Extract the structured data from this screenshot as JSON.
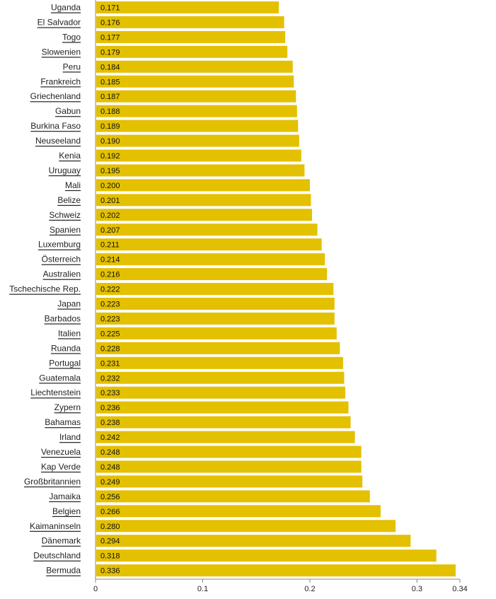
{
  "chart_data": {
    "type": "bar",
    "orientation": "horizontal",
    "categories": [
      "Uganda",
      "El Salvador",
      "Togo",
      "Slowenien",
      "Peru",
      "Frankreich",
      "Griechenland",
      "Gabun",
      "Burkina Faso",
      "Neuseeland",
      "Kenia",
      "Uruguay",
      "Mali",
      "Belize",
      "Schweiz",
      "Spanien",
      "Luxemburg",
      "Österreich",
      "Australien",
      "Tschechische Rep.",
      "Japan",
      "Barbados",
      "Italien",
      "Ruanda",
      "Portugal",
      "Guatemala",
      "Liechtenstein",
      "Zypern",
      "Bahamas",
      "Irland",
      "Venezuela",
      "Kap Verde",
      "Großbritannien",
      "Jamaika",
      "Belgien",
      "Kaimaninseln",
      "Dänemark",
      "Deutschland",
      "Bermuda"
    ],
    "values": [
      0.171,
      0.176,
      0.177,
      0.179,
      0.184,
      0.185,
      0.187,
      0.188,
      0.189,
      0.19,
      0.192,
      0.195,
      0.2,
      0.201,
      0.202,
      0.207,
      0.211,
      0.214,
      0.216,
      0.222,
      0.223,
      0.223,
      0.225,
      0.228,
      0.231,
      0.232,
      0.233,
      0.236,
      0.238,
      0.242,
      0.248,
      0.248,
      0.249,
      0.256,
      0.266,
      0.28,
      0.294,
      0.318,
      0.336
    ],
    "value_labels": [
      "0.171",
      "0.176",
      "0.177",
      "0.179",
      "0.184",
      "0.185",
      "0.187",
      "0.188",
      "0.189",
      "0.190",
      "0.192",
      "0.195",
      "0.200",
      "0.201",
      "0.202",
      "0.207",
      "0.211",
      "0.214",
      "0.216",
      "0.222",
      "0.223",
      "0.223",
      "0.225",
      "0.228",
      "0.231",
      "0.232",
      "0.233",
      "0.236",
      "0.238",
      "0.242",
      "0.248",
      "0.248",
      "0.249",
      "0.256",
      "0.266",
      "0.280",
      "0.294",
      "0.318",
      "0.336"
    ],
    "xlim": [
      0,
      0.34
    ],
    "xticks": [
      0,
      0.1,
      0.2,
      0.3,
      0.34
    ],
    "xtick_labels": [
      "0",
      "0.1",
      "0.2",
      "0.3",
      "0.34"
    ],
    "grid": false,
    "colors": {
      "bar": "#e3c000",
      "axis": "#888888",
      "label": "#222222"
    }
  }
}
